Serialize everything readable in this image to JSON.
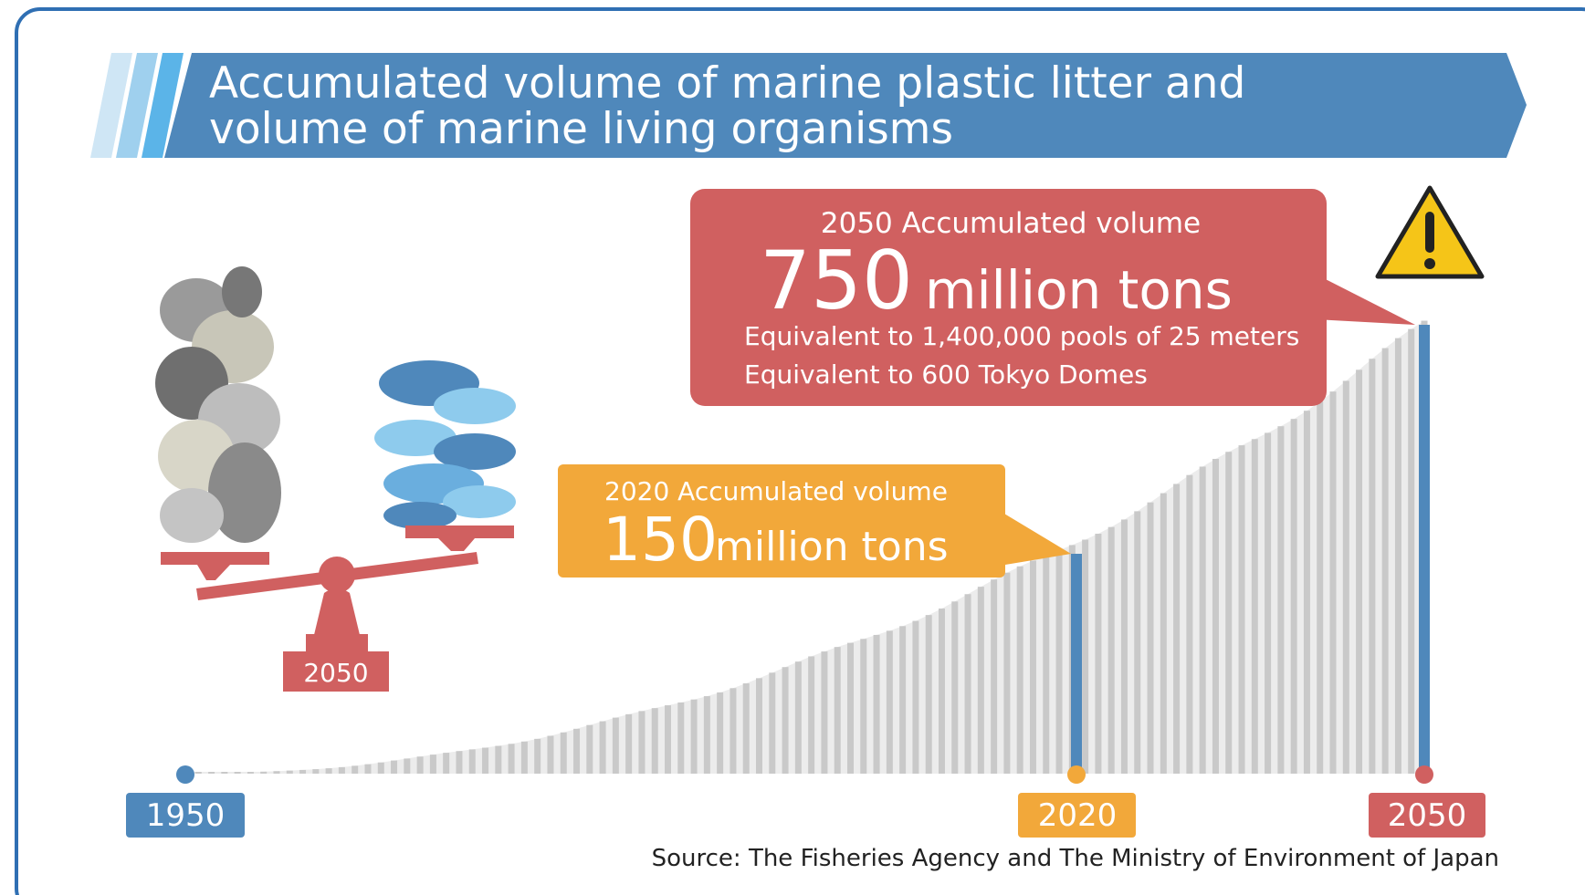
{
  "title": [
    "Accumulated volume of marine plastic litter and",
    "volume of marine living organisms"
  ],
  "callout_2050": {
    "heading": "2050 Accumulated volume",
    "value": "750",
    "unit": "million tons",
    "notes": [
      "Equivalent to 1,400,000 pools of 25 meters",
      "Equivalent to 600 Tokyo Domes"
    ]
  },
  "callout_2020": {
    "heading": "2020 Accumulated volume",
    "value": "150",
    "unit": "million tons"
  },
  "scale_label": "2050",
  "timeline": [
    "1950",
    "2020",
    "2050"
  ],
  "source": "Source: The Fisheries Agency and The Ministry of Environment of Japan"
}
